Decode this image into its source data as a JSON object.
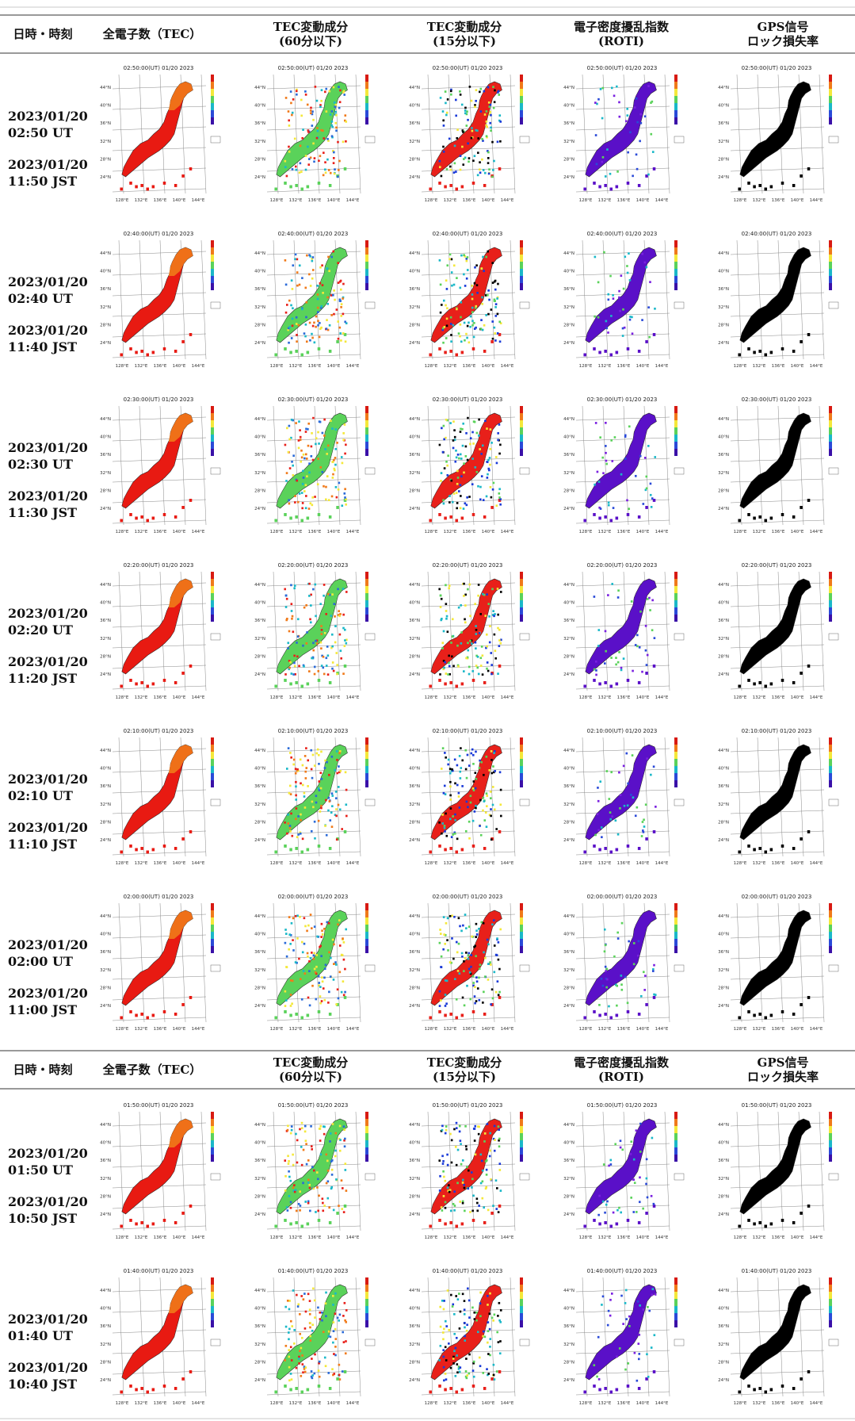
{
  "columns": {
    "time": "日時・時刻",
    "tec": "全電子数（TEC）",
    "dtec60": [
      "TEC変動成分",
      "(60分以下)"
    ],
    "dtec15": [
      "TEC変動成分",
      "(15分以下)"
    ],
    "roti": [
      "電子密度擾乱指数",
      "(ROTI)"
    ],
    "loss": [
      "GPS信号",
      "ロック損失率"
    ]
  },
  "colors": {
    "tec_fill": "#e81a12",
    "tec_north": "#f07a1a",
    "roti_fill": "#5a10c8",
    "loss_fill": "#000000",
    "dtec_green": "#5ad25a",
    "dtec_red": "#e8201a"
  },
  "rows": [
    {
      "ut_date": "2023/01/20",
      "ut_time": "02:50 UT",
      "jst_date": "2023/01/20",
      "jst_time": "11:50 JST",
      "map_title": "02:50:00(UT) 01/20 2023"
    },
    {
      "ut_date": "2023/01/20",
      "ut_time": "02:40 UT",
      "jst_date": "2023/01/20",
      "jst_time": "11:40 JST",
      "map_title": "02:40:00(UT) 01/20 2023"
    },
    {
      "ut_date": "2023/01/20",
      "ut_time": "02:30 UT",
      "jst_date": "2023/01/20",
      "jst_time": "11:30 JST",
      "map_title": "02:30:00(UT) 01/20 2023"
    },
    {
      "ut_date": "2023/01/20",
      "ut_time": "02:20 UT",
      "jst_date": "2023/01/20",
      "jst_time": "11:20 JST",
      "map_title": "02:20:00(UT) 01/20 2023"
    },
    {
      "ut_date": "2023/01/20",
      "ut_time": "02:10 UT",
      "jst_date": "2023/01/20",
      "jst_time": "11:10 JST",
      "map_title": "02:10:00(UT) 01/20 2023"
    },
    {
      "ut_date": "2023/01/20",
      "ut_time": "02:00 UT",
      "jst_date": "2023/01/20",
      "jst_time": "11:00 JST",
      "map_title": "02:00:00(UT) 01/20 2023"
    },
    {
      "ut_date": "2023/01/20",
      "ut_time": "01:50 UT",
      "jst_date": "2023/01/20",
      "jst_time": "10:50 JST",
      "map_title": "01:50:00(UT) 01/20 2023"
    },
    {
      "ut_date": "2023/01/20",
      "ut_time": "01:40 UT",
      "jst_date": "2023/01/20",
      "jst_time": "10:40 JST",
      "map_title": "01:40:00(UT) 01/20 2023"
    }
  ],
  "axis": {
    "lat": [
      "44°N",
      "40°N",
      "36°N",
      "32°N",
      "28°N",
      "24°N"
    ],
    "lon": [
      "128°E",
      "132°E",
      "136°E",
      "140°E",
      "144°E"
    ]
  }
}
